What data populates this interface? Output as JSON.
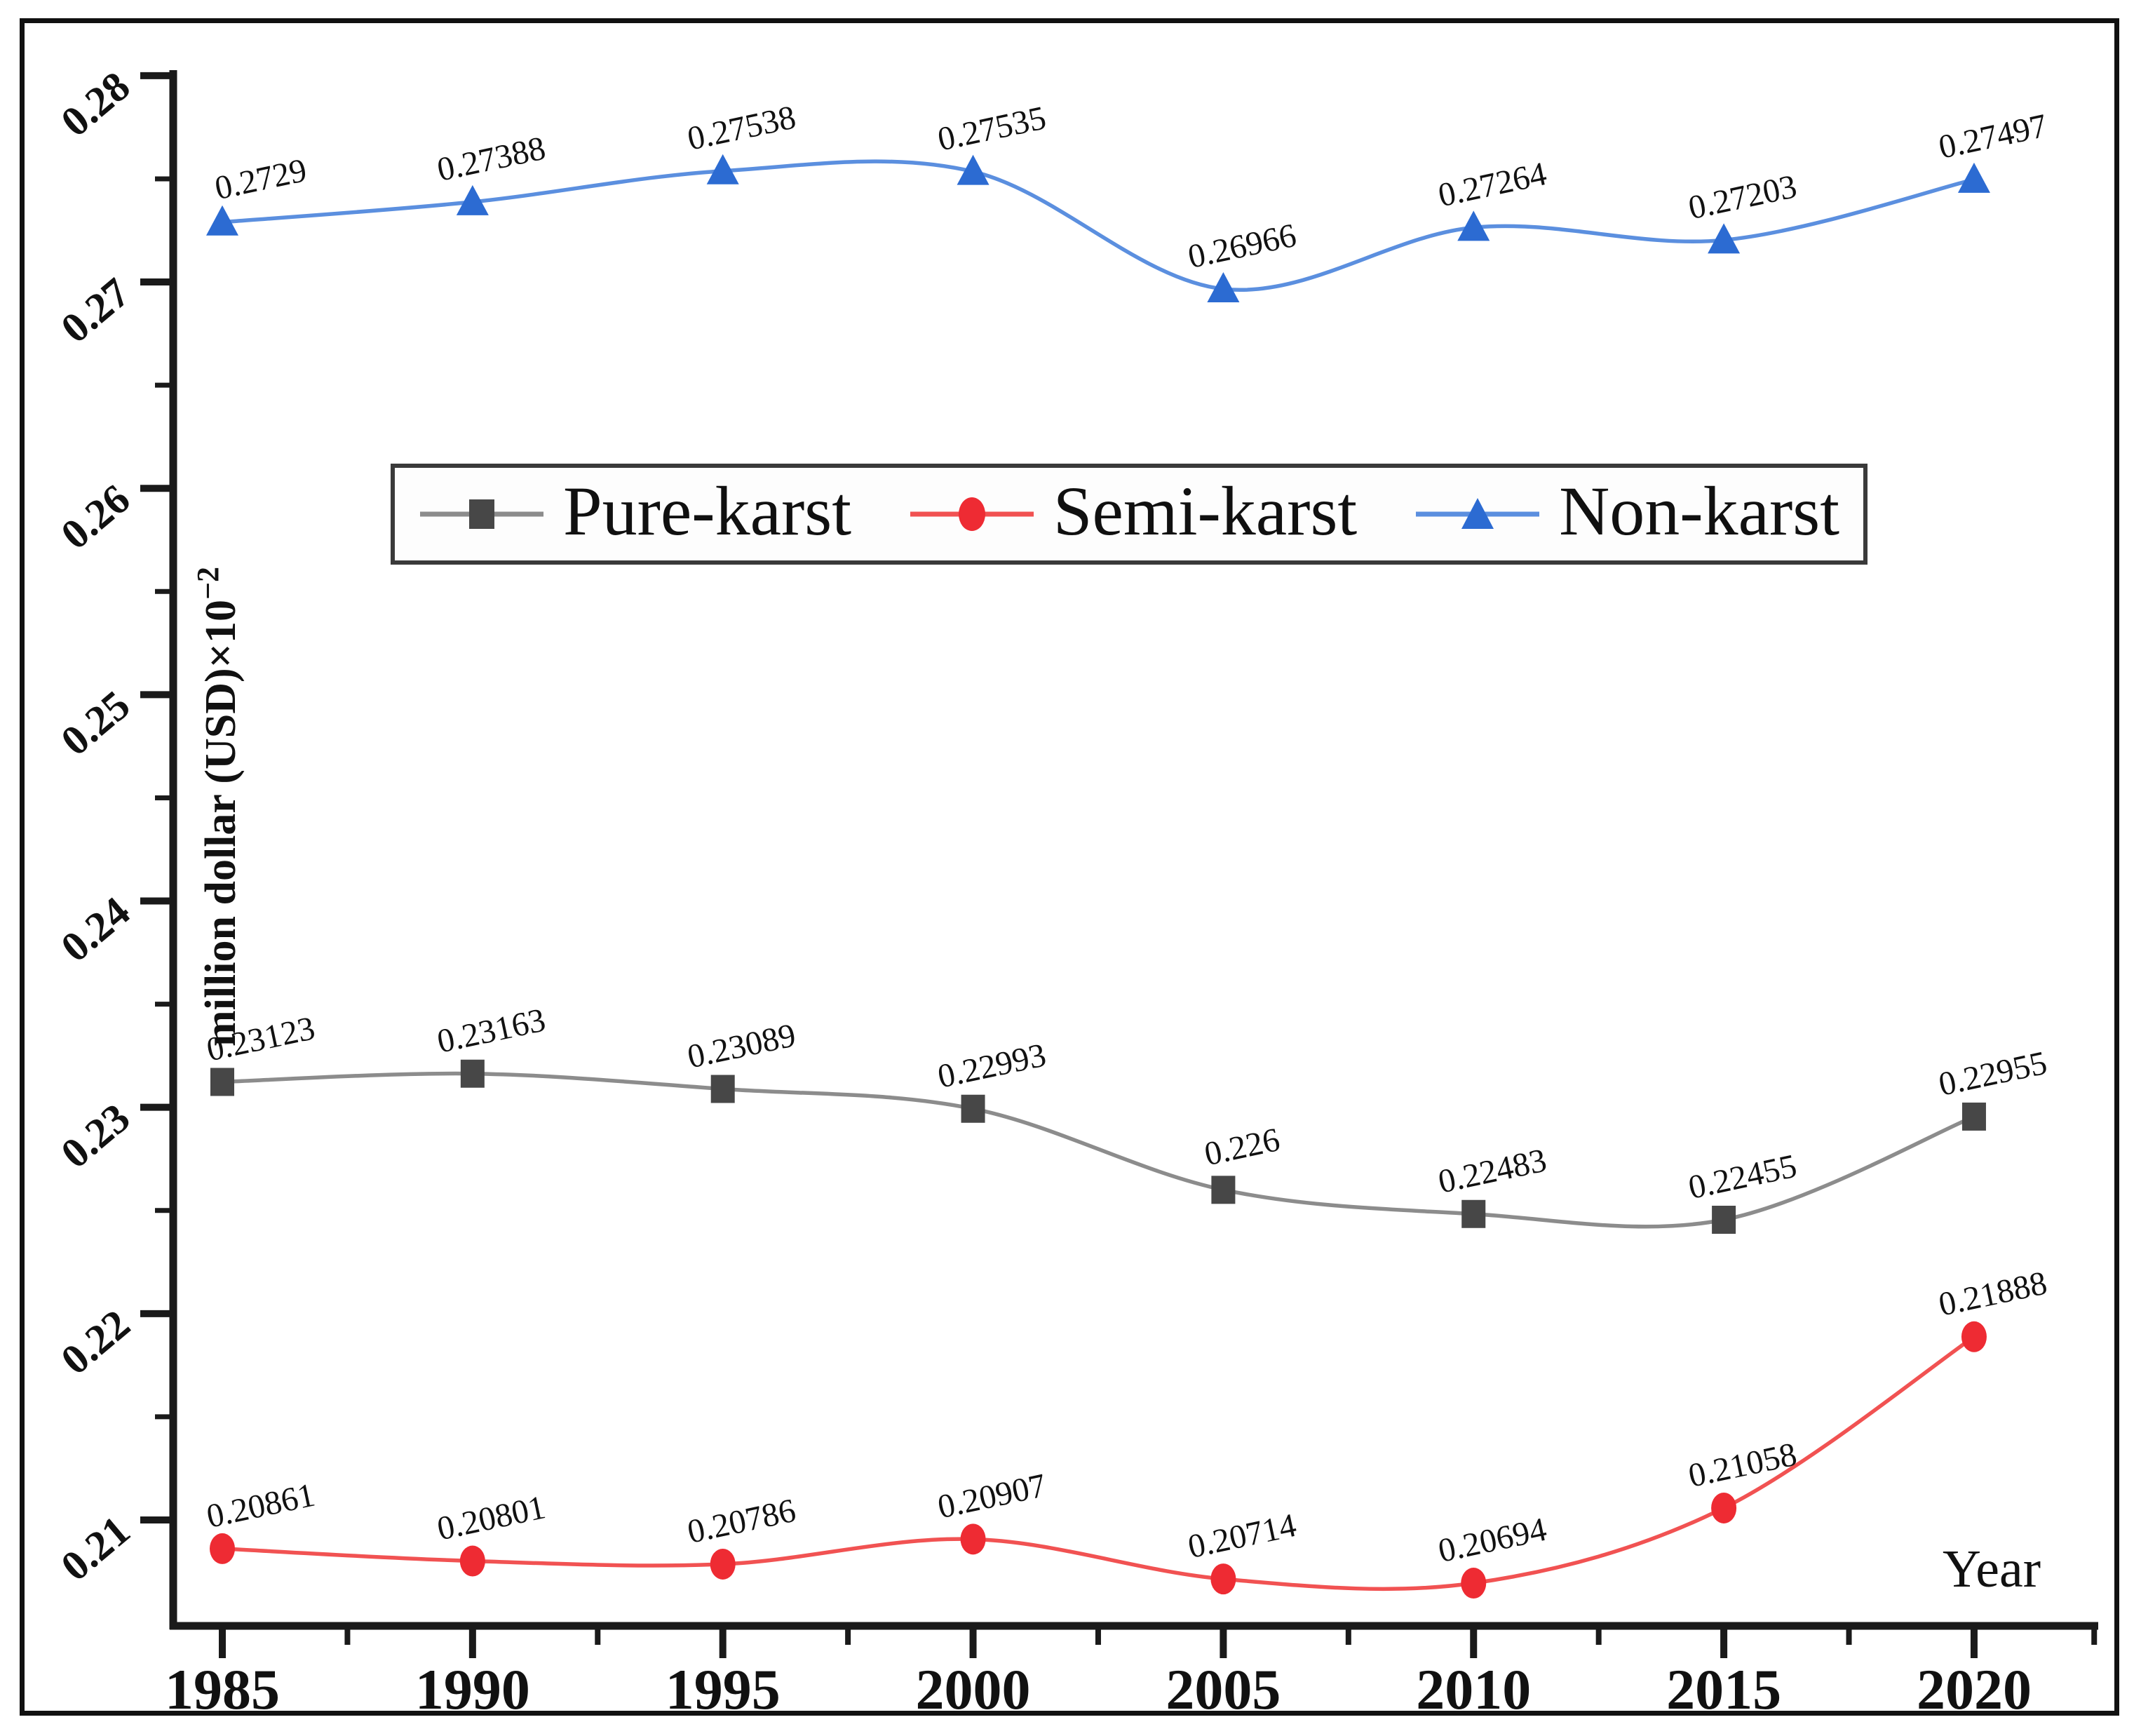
{
  "figure": {
    "ylabel_base": "million dollar (USD)×10",
    "ylabel_exponent": "−2",
    "xlabel": "Year",
    "background": "#ffffff",
    "border_color": "#111111",
    "axis_color": "#1a1a1a"
  },
  "chart_data": {
    "type": "line",
    "x": [
      1985,
      1990,
      1995,
      2000,
      2005,
      2010,
      2015,
      2020
    ],
    "x_tick_labels": [
      "1985",
      "1990",
      "1995",
      "2000",
      "2005",
      "2010",
      "2015",
      "2020"
    ],
    "y_ticks": [
      0.21,
      0.22,
      0.23,
      0.24,
      0.25,
      0.26,
      0.27,
      0.28
    ],
    "y_tick_labels": [
      "0.21",
      "0.22",
      "0.23",
      "0.24",
      "0.25",
      "0.26",
      "0.27",
      "0.28"
    ],
    "y_minor_ticks": [
      0.215,
      0.225,
      0.235,
      0.245,
      0.255,
      0.265,
      0.275
    ],
    "x_minor_ticks": [
      1987.5,
      1992.5,
      1997.5,
      2002.5,
      2007.5,
      2012.5,
      2017.5,
      2022.4
    ],
    "xlim": [
      1984.0,
      2022.5
    ],
    "ylim": [
      0.2049,
      0.2803
    ],
    "grid": false,
    "legend_position": "upper-center-inside",
    "xlabel": "Year",
    "ylabel": "million dollar (USD)×10⁻²",
    "series": [
      {
        "name": "Pure-karst",
        "marker": "square",
        "marker_color": "#474747",
        "line_color": "#8c8c8c",
        "values": [
          0.23123,
          0.23163,
          0.23089,
          0.22993,
          0.226,
          0.22483,
          0.22455,
          0.22955
        ],
        "labels": [
          "0.23123",
          "0.23163",
          "0.23089",
          "0.22993",
          "0.226",
          "0.22483",
          "0.22455",
          "0.22955"
        ]
      },
      {
        "name": "Semi-karst",
        "marker": "circle",
        "marker_color": "#ee2b33",
        "line_color": "#f15252",
        "values": [
          0.20861,
          0.20801,
          0.20786,
          0.20907,
          0.20714,
          0.20694,
          0.21058,
          0.21888
        ],
        "labels": [
          "0.20861",
          "0.20801",
          "0.20786",
          "0.20907",
          "0.20714",
          "0.20694",
          "0.21058",
          "0.21888"
        ]
      },
      {
        "name": "Non-karst",
        "marker": "triangle",
        "marker_color": "#2c6bd2",
        "line_color": "#5b8fdf",
        "values": [
          0.2729,
          0.27388,
          0.27538,
          0.27535,
          0.26966,
          0.27264,
          0.27203,
          0.27497
        ],
        "labels": [
          "0.2729",
          "0.27388",
          "0.27538",
          "0.27535",
          "0.26966",
          "0.27264",
          "0.27203",
          "0.27497"
        ]
      }
    ]
  }
}
